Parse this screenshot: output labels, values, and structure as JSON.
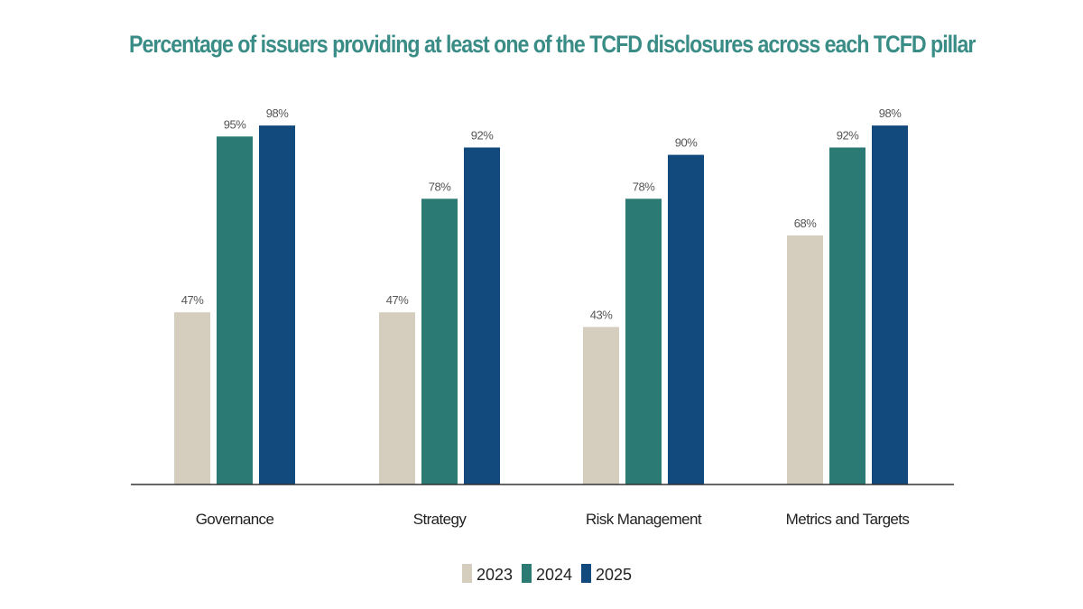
{
  "chart_data": {
    "type": "bar",
    "title": "Percentage of issuers providing at least one of the TCFD disclosures across each TCFD pillar",
    "xlabel": "",
    "ylabel": "",
    "ylim": [
      0,
      100
    ],
    "grid": false,
    "legend_position": "bottom-center",
    "categories": [
      "Governance",
      "Strategy",
      "Risk Management",
      "Metrics and Targets"
    ],
    "series": [
      {
        "name": "2023",
        "color": "#d5cdbd",
        "values": [
          47,
          47,
          43,
          68
        ]
      },
      {
        "name": "2024",
        "color": "#2b7a74",
        "values": [
          95,
          78,
          78,
          92
        ]
      },
      {
        "name": "2025",
        "color": "#124a7e",
        "values": [
          98,
          92,
          90,
          98
        ]
      }
    ],
    "value_suffix": "%"
  }
}
